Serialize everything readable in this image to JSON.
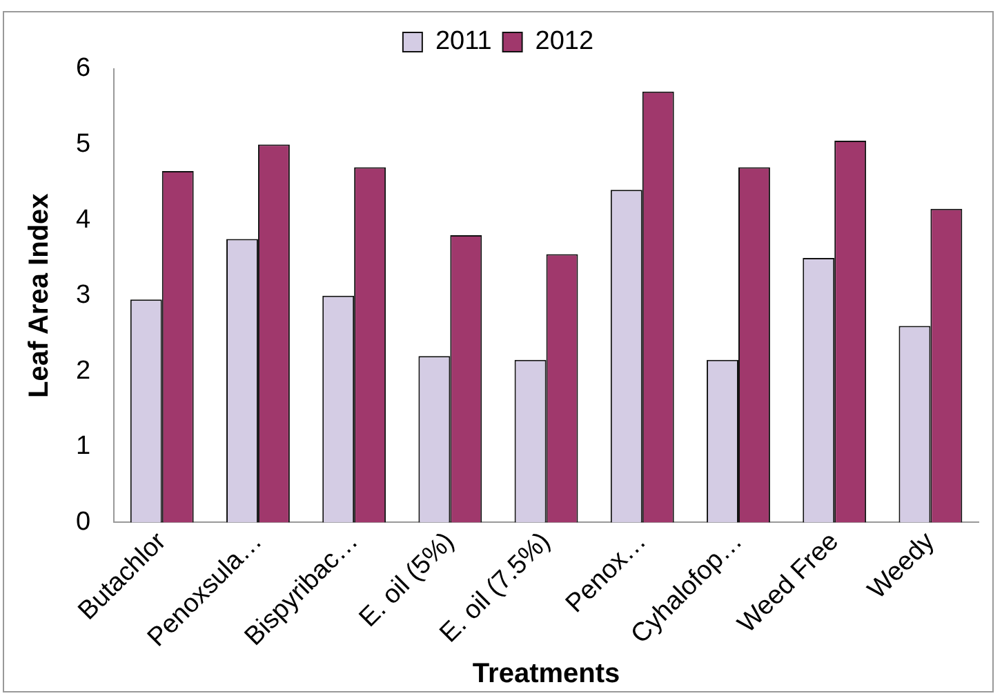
{
  "chart_data": {
    "type": "bar",
    "xlabel": "Treatments",
    "ylabel": "Leaf Area Index",
    "categories": [
      "Butachlor",
      "Penoxsula…",
      "Bispyribac…",
      "E. oil (5%)",
      "E. oil (7.5%)",
      "Penox…",
      "Cyhalofop…",
      "Weed Free",
      "Weedy"
    ],
    "series": [
      {
        "name": "2011",
        "color": "#d4cce4",
        "values": [
          2.95,
          3.75,
          3.0,
          2.2,
          2.15,
          4.4,
          2.15,
          3.5,
          2.6
        ]
      },
      {
        "name": "2012",
        "color": "#a0386c",
        "values": [
          4.65,
          5.0,
          4.7,
          3.8,
          3.55,
          5.7,
          4.7,
          5.05,
          4.15
        ]
      }
    ],
    "ylim": [
      0,
      6
    ],
    "yticks": [
      0,
      1,
      2,
      3,
      4,
      5,
      6
    ],
    "grid": false,
    "legend": "top"
  }
}
